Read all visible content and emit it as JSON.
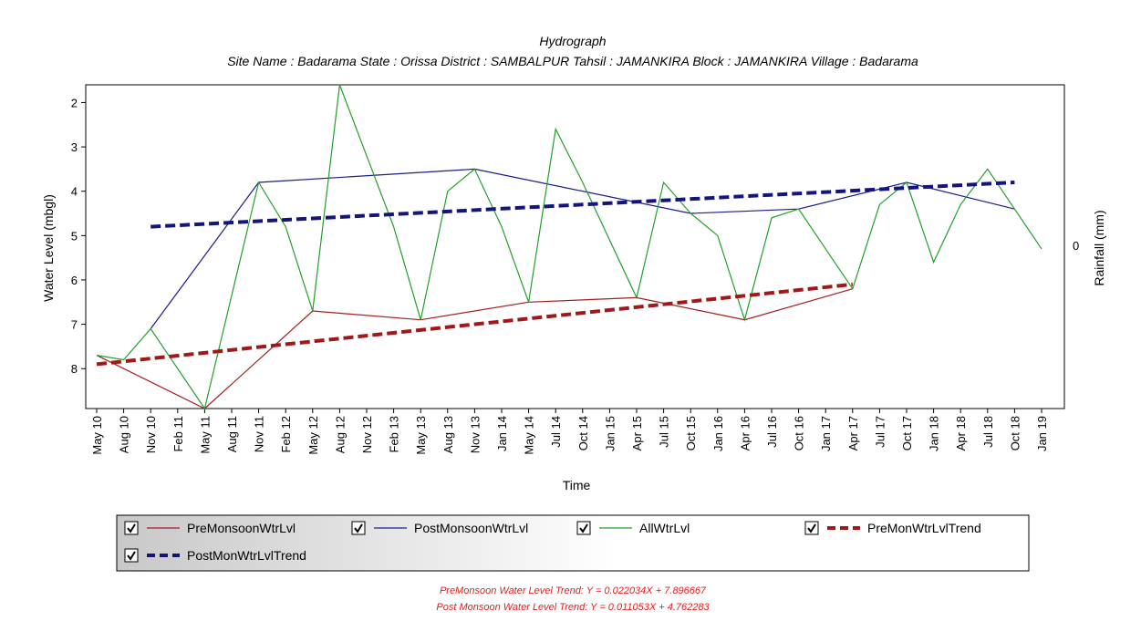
{
  "chart_data": {
    "type": "line",
    "title": "Hydrograph",
    "subtitle": "Site Name : Badarama  State : Orissa District : SAMBALPUR  Tahsil : JAMANKIRA  Block : JAMANKIRA Village : Badarama",
    "xlabel": "Time",
    "ylabel": "Water Level (mbgl)",
    "y2label": "Rainfall (mm)",
    "y2_ticks": [
      "0"
    ],
    "ylim": [
      8.9,
      1.6
    ],
    "y_inverted": true,
    "y_ticks": [
      2,
      3,
      4,
      5,
      6,
      7,
      8
    ],
    "categories": [
      "May 10",
      "Aug 10",
      "Nov 10",
      "Feb 11",
      "May 11",
      "Aug 11",
      "Nov 11",
      "Feb 12",
      "May 12",
      "Aug 12",
      "Nov 12",
      "Feb 13",
      "May 13",
      "Aug 13",
      "Nov 13",
      "Jan 14",
      "May 14",
      "Jul 14",
      "Oct 14",
      "Jan 15",
      "Apr 15",
      "Jul 15",
      "Oct 15",
      "Jan 16",
      "Apr 16",
      "Jul 16",
      "Oct 16",
      "Jan 17",
      "Apr 17",
      "Jul 17",
      "Oct 17",
      "Jan 18",
      "Apr 18",
      "Jul 18",
      "Oct 18",
      "Jan 19"
    ],
    "series": [
      {
        "name": "PreMonsoonWtrLvl",
        "color": "#a02020",
        "style": "solid",
        "points": [
          [
            "May 10",
            7.7
          ],
          [
            "May 11",
            8.9
          ],
          [
            "May 12",
            6.7
          ],
          [
            "May 13",
            6.9
          ],
          [
            "May 14",
            6.5
          ],
          [
            "Apr 15",
            6.4
          ],
          [
            "Apr 16",
            6.9
          ],
          [
            "Apr 17",
            6.2
          ]
        ]
      },
      {
        "name": "PostMonsoonWtrLvl",
        "color": "#1c1c8c",
        "style": "solid",
        "points": [
          [
            "Nov 10",
            7.1
          ],
          [
            "Nov 11",
            3.8
          ],
          [
            "Nov 13",
            3.5
          ],
          [
            "Oct 15",
            4.5
          ],
          [
            "Oct 16",
            4.4
          ],
          [
            "Oct 17",
            3.8
          ],
          [
            "Oct 18",
            4.4
          ]
        ]
      },
      {
        "name": "AllWtrLvl",
        "color": "#22a02a",
        "style": "solid",
        "points": [
          [
            "May 10",
            7.7
          ],
          [
            "Aug 10",
            7.8
          ],
          [
            "Nov 10",
            7.1
          ],
          [
            "May 11",
            8.9
          ],
          [
            "Nov 11",
            3.8
          ],
          [
            "Feb 12",
            4.8
          ],
          [
            "May 12",
            6.7
          ],
          [
            "Aug 12",
            1.6
          ],
          [
            "Nov 12",
            3.2
          ],
          [
            "Feb 13",
            4.8
          ],
          [
            "May 13",
            6.9
          ],
          [
            "Aug 13",
            4.0
          ],
          [
            "Nov 13",
            3.5
          ],
          [
            "Jan 14",
            4.8
          ],
          [
            "May 14",
            6.5
          ],
          [
            "Jul 14",
            2.6
          ],
          [
            "Oct 14",
            3.8
          ],
          [
            "Jan 15",
            5.1
          ],
          [
            "Apr 15",
            6.4
          ],
          [
            "Jul 15",
            3.8
          ],
          [
            "Oct 15",
            4.5
          ],
          [
            "Jan 16",
            5.0
          ],
          [
            "Apr 16",
            6.9
          ],
          [
            "Jul 16",
            4.6
          ],
          [
            "Oct 16",
            4.4
          ],
          [
            "Jan 17",
            5.3
          ],
          [
            "Apr 17",
            6.2
          ],
          [
            "Jul 17",
            4.3
          ],
          [
            "Oct 17",
            3.8
          ],
          [
            "Jan 18",
            5.6
          ],
          [
            "Apr 18",
            4.3
          ],
          [
            "Jul 18",
            3.5
          ],
          [
            "Oct 18",
            4.4
          ],
          [
            "Jan 19",
            5.3
          ]
        ]
      },
      {
        "name": "PreMonWtrLvlTrend",
        "color": "#a01818",
        "style": "dashed",
        "points": [
          [
            "May 10",
            7.9
          ],
          [
            "Apr 17",
            6.1
          ]
        ]
      },
      {
        "name": "PostMonWtrLvlTrend",
        "color": "#14147a",
        "style": "dashed",
        "points": [
          [
            "Nov 10",
            4.8
          ],
          [
            "Oct 18",
            3.8
          ]
        ]
      }
    ],
    "grid": false,
    "legend_position": "bottom"
  },
  "legend": {
    "checked": true,
    "items": [
      "PreMonsoonWtrLvl",
      "PostMonsoonWtrLvl",
      "AllWtrLvl",
      "PreMonWtrLvlTrend",
      "PostMonWtrLvlTrend"
    ]
  },
  "equations": {
    "pre": "PreMonsoon Water Level Trend: Y = 0.022034X + 7.896667",
    "post": "Post Monsoon Water Level Trend: Y = 0.011053X + 4.762283"
  }
}
